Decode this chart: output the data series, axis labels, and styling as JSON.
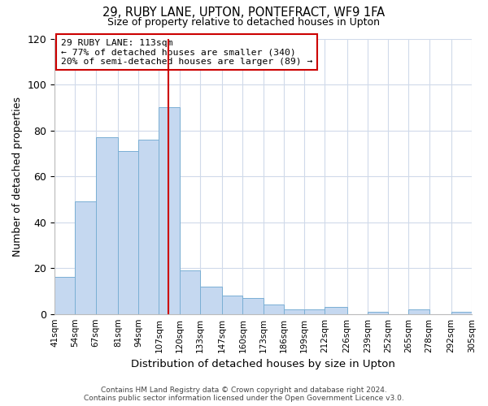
{
  "title": "29, RUBY LANE, UPTON, PONTEFRACT, WF9 1FA",
  "subtitle": "Size of property relative to detached houses in Upton",
  "xlabel": "Distribution of detached houses by size in Upton",
  "ylabel": "Number of detached properties",
  "bar_color": "#c5d8f0",
  "bar_edge_color": "#7aafd4",
  "bar_labels": [
    "41sqm",
    "54sqm",
    "67sqm",
    "81sqm",
    "94sqm",
    "107sqm",
    "120sqm",
    "133sqm",
    "147sqm",
    "160sqm",
    "173sqm",
    "186sqm",
    "199sqm",
    "212sqm",
    "226sqm",
    "239sqm",
    "252sqm",
    "265sqm",
    "278sqm",
    "292sqm",
    "305sqm"
  ],
  "bar_values": [
    16,
    49,
    77,
    71,
    76,
    90,
    19,
    12,
    8,
    7,
    4,
    2,
    2,
    3,
    0,
    1,
    0,
    2,
    0,
    1
  ],
  "bin_edges": [
    41,
    54,
    67,
    81,
    94,
    107,
    120,
    133,
    147,
    160,
    173,
    186,
    199,
    212,
    226,
    239,
    252,
    265,
    278,
    292,
    305
  ],
  "vline_x": 113,
  "vline_color": "#cc0000",
  "ylim": [
    0,
    120
  ],
  "yticks": [
    0,
    20,
    40,
    60,
    80,
    100,
    120
  ],
  "annotation_text": "29 RUBY LANE: 113sqm\n← 77% of detached houses are smaller (340)\n20% of semi-detached houses are larger (89) →",
  "annotation_box_color": "#ffffff",
  "annotation_box_edge_color": "#cc0000",
  "footer_line1": "Contains HM Land Registry data © Crown copyright and database right 2024.",
  "footer_line2": "Contains public sector information licensed under the Open Government Licence v3.0.",
  "background_color": "#ffffff",
  "grid_color": "#d0daea"
}
